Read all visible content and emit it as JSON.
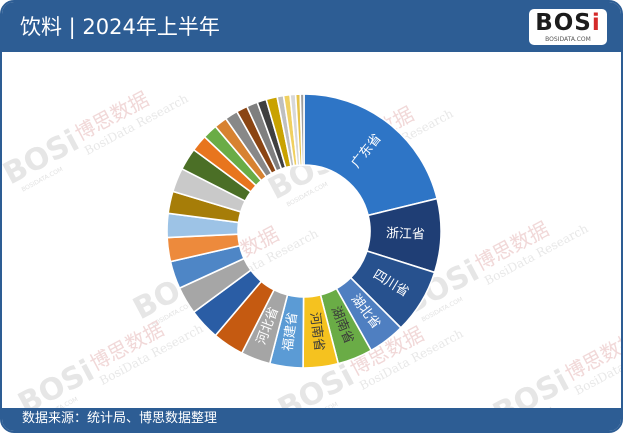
{
  "header": {
    "title": "饮料 | 2024年上半年"
  },
  "logo": {
    "main_prefix": "BOS",
    "main_i": "i",
    "sub": "BOSIDATA.COM"
  },
  "watermark": {
    "brand": "BOSi",
    "cn": "博思数据",
    "en": "BosiData Research",
    "site": "BOSIDATA.COM"
  },
  "footer": {
    "source": "数据来源：统计局、博思数据整理"
  },
  "chart_data": {
    "type": "pie",
    "donut": true,
    "title": "",
    "slices": [
      {
        "label": "广东省",
        "value": 19.5,
        "color": "#2e75c6",
        "label_color": "#ffffff",
        "show_label": true
      },
      {
        "label": "浙江省",
        "value": 8.0,
        "color": "#1f3e75",
        "label_color": "#ffffff",
        "show_label": true
      },
      {
        "label": "四川省",
        "value": 7.0,
        "color": "#27518e",
        "label_color": "#ffffff",
        "show_label": true
      },
      {
        "label": "湖北省",
        "value": 4.0,
        "color": "#4f7fc1",
        "label_color": "#ffffff",
        "show_label": true
      },
      {
        "label": "湖南省",
        "value": 3.8,
        "color": "#6aac46",
        "label_color": "#3a3a3a",
        "show_label": true
      },
      {
        "label": "河南省",
        "value": 3.8,
        "color": "#f5c21f",
        "label_color": "#3a3a3a",
        "show_label": true
      },
      {
        "label": "福建省",
        "value": 3.6,
        "color": "#5b9bd5",
        "label_color": "#ffffff",
        "show_label": true
      },
      {
        "label": "河北省",
        "value": 3.2,
        "color": "#a5a5a5",
        "label_color": "#ffffff",
        "show_label": true
      },
      {
        "label": "",
        "value": 3.4,
        "color": "#c55a11",
        "show_label": false
      },
      {
        "label": "",
        "value": 3.4,
        "color": "#2a5da5",
        "show_label": false
      },
      {
        "label": "",
        "value": 3.0,
        "color": "#a6a6a6",
        "show_label": false
      },
      {
        "label": "",
        "value": 3.0,
        "color": "#4e86c6",
        "show_label": false
      },
      {
        "label": "",
        "value": 2.6,
        "color": "#ed8a3c",
        "show_label": false
      },
      {
        "label": "",
        "value": 2.6,
        "color": "#9dc3e6",
        "show_label": false
      },
      {
        "label": "",
        "value": 2.4,
        "color": "#a67d08",
        "show_label": false
      },
      {
        "label": "",
        "value": 2.6,
        "color": "#c9c9c9",
        "show_label": false
      },
      {
        "label": "",
        "value": 2.4,
        "color": "#4b6f26",
        "show_label": false
      },
      {
        "label": "",
        "value": 1.8,
        "color": "#e8751e",
        "show_label": false
      },
      {
        "label": "",
        "value": 1.6,
        "color": "#6aac46",
        "show_label": false
      },
      {
        "label": "",
        "value": 1.4,
        "color": "#d78231",
        "show_label": false
      },
      {
        "label": "",
        "value": 1.4,
        "color": "#888888",
        "show_label": false
      },
      {
        "label": "",
        "value": 1.2,
        "color": "#8b4513",
        "show_label": false
      },
      {
        "label": "",
        "value": 1.2,
        "color": "#7f7f7f",
        "show_label": false
      },
      {
        "label": "",
        "value": 1.0,
        "color": "#404040",
        "show_label": false
      },
      {
        "label": "",
        "value": 1.2,
        "color": "#c9a200",
        "show_label": false
      },
      {
        "label": "",
        "value": 0.7,
        "color": "#bfbfbf",
        "show_label": false
      },
      {
        "label": "",
        "value": 0.7,
        "color": "#f0d060",
        "show_label": false
      },
      {
        "label": "",
        "value": 0.6,
        "color": "#d8d8d8",
        "show_label": false
      },
      {
        "label": "",
        "value": 0.5,
        "color": "#e6c34a",
        "show_label": false
      },
      {
        "label": "",
        "value": 0.4,
        "color": "#9e9e9e",
        "show_label": false
      }
    ]
  }
}
